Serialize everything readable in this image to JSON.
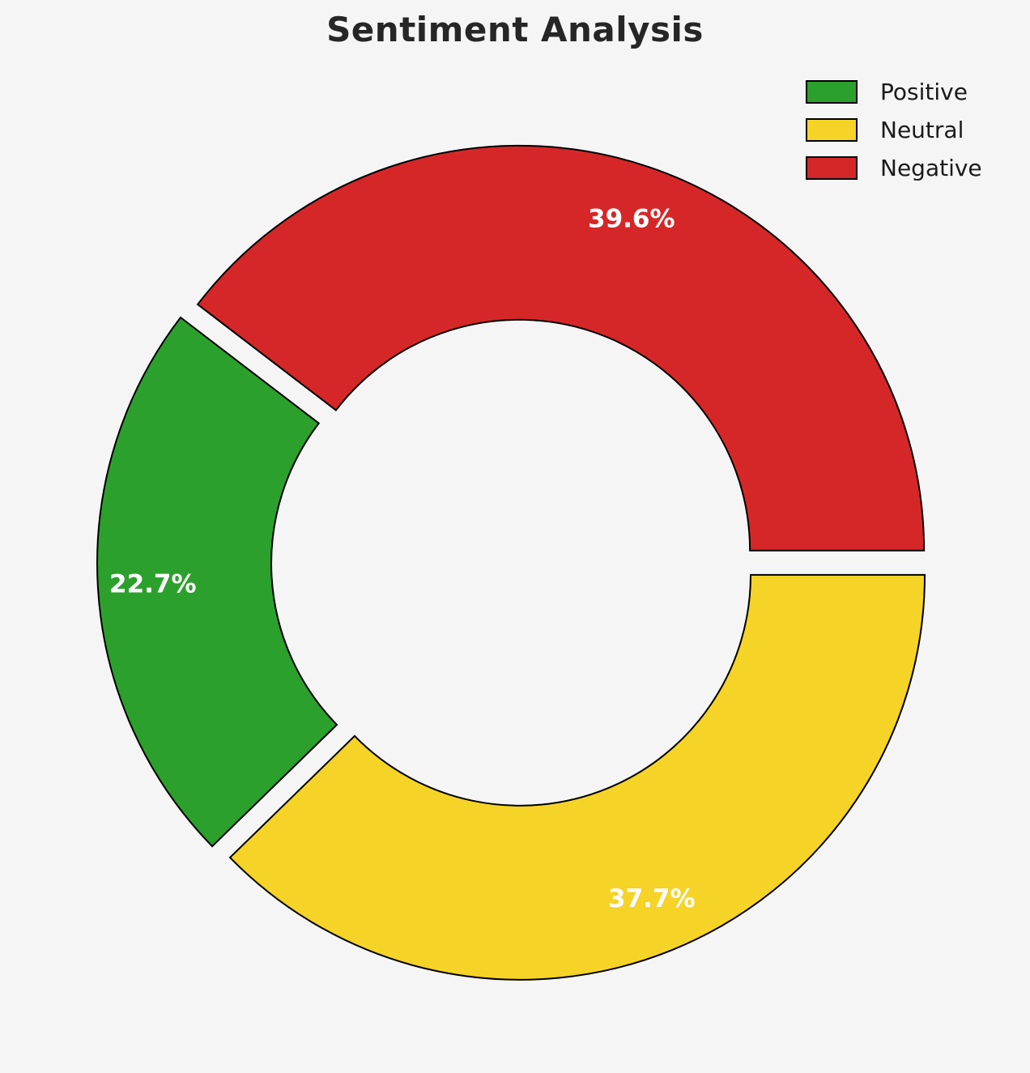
{
  "title": "Sentiment Analysis",
  "background_color": "#f5f5f5",
  "chart_data": {
    "type": "pie",
    "title": "Sentiment Analysis",
    "categories": [
      "Positive",
      "Neutral",
      "Negative"
    ],
    "values": [
      22.7,
      37.7,
      39.6
    ],
    "labels": [
      "22.7%",
      "37.7%",
      "39.6%"
    ],
    "colors": [
      "#2ca02c",
      "#f5d327",
      "#d62728"
    ],
    "donut": true,
    "exploded": true,
    "start_angle": 142.56,
    "counterclock": true,
    "edge_color": "#000000",
    "label_color": "#ffffff",
    "legend_position": "upper right",
    "legend_entries": [
      "Positive",
      "Neutral",
      "Negative"
    ]
  },
  "legend": {
    "items": [
      {
        "label": "Positive",
        "color": "#2ca02c"
      },
      {
        "label": "Neutral",
        "color": "#f5d327"
      },
      {
        "label": "Negative",
        "color": "#d62728"
      }
    ]
  }
}
